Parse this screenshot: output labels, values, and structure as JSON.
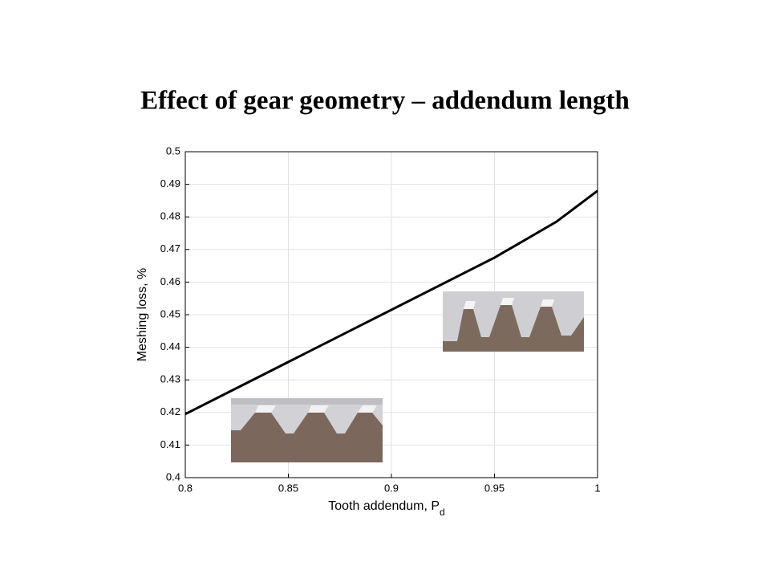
{
  "chart_data": {
    "type": "line",
    "title": "Effect of gear geometry – addendum length",
    "xlabel": {
      "text": "Tooth addendum, P",
      "subscript": "d"
    },
    "ylabel": "Meshing loss, %",
    "x": [
      0.8,
      0.85,
      0.9,
      0.95,
      0.98,
      1.0
    ],
    "values": [
      0.4195,
      0.4355,
      0.4515,
      0.4675,
      0.4785,
      0.488
    ],
    "color": "#000000",
    "xlim": [
      0.8,
      1.0
    ],
    "xticks": [
      0.8,
      0.85,
      0.9,
      0.95,
      1
    ],
    "ylim": [
      0.4,
      0.5
    ],
    "yticks": [
      0.4,
      0.41,
      0.42,
      0.43,
      0.44,
      0.45,
      0.46,
      0.47,
      0.48,
      0.49,
      0.5
    ],
    "grid": true
  }
}
